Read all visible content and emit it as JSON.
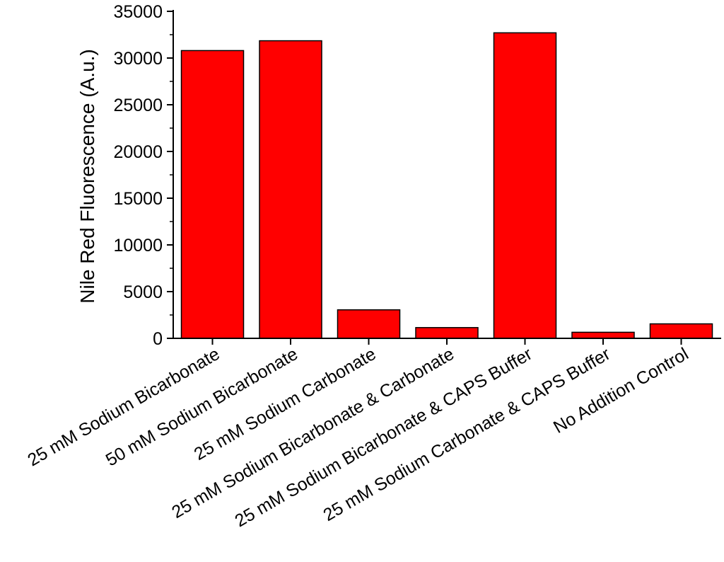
{
  "chart_data": {
    "type": "bar",
    "title": "",
    "xlabel": "",
    "ylabel": "Nile Red Fluorescence (A.u.)",
    "categories": [
      "25 mM Sodium Bicarbonate",
      "50 mM Sodium Bicarbonate",
      "25 mM Sodium Carbonate",
      "25 mM Sodium Bicarbonate & Carbonate",
      "25 mM Sodium Bicarbonate & CAPS Buffer",
      "25 mM Sodium Carbonate & CAPS Buffer",
      "No Addition Control"
    ],
    "values": [
      30800,
      31850,
      3050,
      1150,
      32700,
      650,
      1550
    ],
    "ylim": [
      0,
      35000
    ],
    "yticks": [
      0,
      5000,
      10000,
      15000,
      20000,
      25000,
      30000,
      35000
    ],
    "ytick_labels": [
      "0",
      "5000",
      "10000",
      "15000",
      "20000",
      "25000",
      "30000",
      "35000"
    ],
    "grid": false,
    "bar_color": "#ff0000",
    "edge_color": "#000000"
  }
}
